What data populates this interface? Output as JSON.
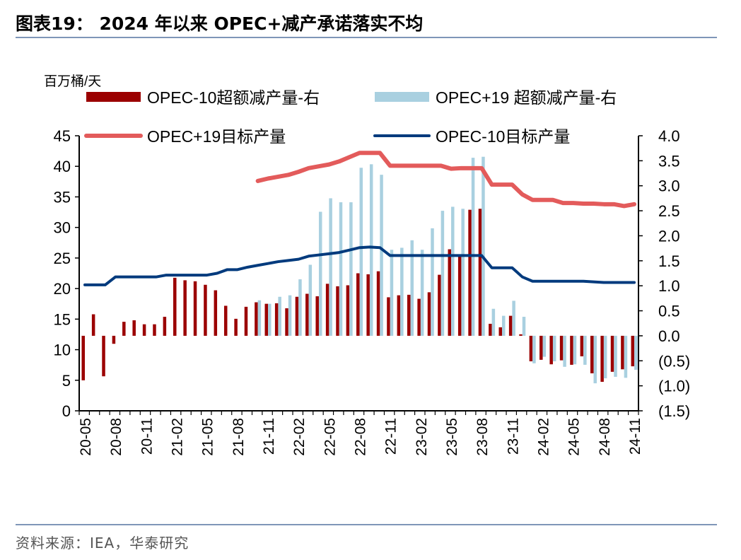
{
  "title": "图表19： 2024 年以来 OPEC+减产承诺落实不均",
  "source": "资料来源：IEA，华泰研究",
  "chart_data": {
    "type": "bar+line",
    "unit_label": "百万桶/天",
    "legend_position": "top",
    "left_axis": {
      "ylim": [
        0,
        45
      ],
      "ticks": [
        "0",
        "5",
        "10",
        "15",
        "20",
        "25",
        "30",
        "35",
        "40",
        "45"
      ]
    },
    "right_axis": {
      "ylim": [
        -1.5,
        4.0
      ],
      "ticks": [
        "(1.5)",
        "(1.0)",
        "(0.5)",
        "0.0",
        "0.5",
        "1.0",
        "1.5",
        "2.0",
        "2.5",
        "3.0",
        "3.5",
        "4.0"
      ]
    },
    "x_tick_labels": [
      "20-05",
      "20-08",
      "20-11",
      "21-02",
      "21-05",
      "21-08",
      "21-11",
      "22-02",
      "22-05",
      "22-08",
      "22-11",
      "23-02",
      "23-05",
      "23-08",
      "23-11",
      "24-02",
      "24-05",
      "24-08",
      "24-11"
    ],
    "x_start": "2020-05",
    "x_end": "2024-11",
    "series": [
      {
        "name": "OPEC-10超额减产量-右",
        "kind": "bar",
        "axis": "right",
        "color": "#9b0000",
        "values": [
          -0.89,
          0.43,
          -0.81,
          -0.16,
          0.28,
          0.31,
          0.23,
          0.23,
          0.38,
          1.16,
          1.11,
          1.09,
          1.02,
          0.91,
          0.6,
          0.34,
          0.58,
          0.67,
          0.64,
          0.65,
          0.55,
          0.78,
          0.84,
          0.79,
          1.04,
          0.99,
          1.01,
          1.25,
          1.23,
          1.29,
          0.77,
          0.81,
          0.82,
          0.74,
          0.87,
          1.22,
          1.73,
          1.63,
          2.52,
          2.54,
          0.24,
          0.17,
          0.4,
          0.03,
          -0.51,
          -0.48,
          -0.57,
          -0.49,
          -0.58,
          -0.41,
          -0.75,
          -0.92,
          -0.72,
          -0.67,
          -0.61
        ]
      },
      {
        "name": "OPEC+19 超额减产量-右",
        "kind": "bar",
        "axis": "right",
        "color": "#a9d0e0",
        "values": [
          null,
          null,
          null,
          null,
          null,
          null,
          null,
          null,
          null,
          null,
          null,
          null,
          null,
          null,
          null,
          null,
          null,
          0.71,
          0.64,
          0.78,
          0.81,
          1.13,
          1.42,
          2.48,
          2.75,
          2.67,
          2.67,
          3.36,
          3.43,
          3.22,
          1.72,
          1.76,
          1.91,
          1.72,
          2.15,
          2.5,
          2.58,
          2.54,
          3.56,
          3.58,
          0.54,
          0.4,
          0.7,
          0.38,
          -0.55,
          -0.42,
          -0.51,
          -0.62,
          -0.57,
          -0.58,
          -0.95,
          -0.85,
          -0.82,
          -0.84,
          -0.68
        ]
      },
      {
        "name": "OPEC+19目标产量",
        "kind": "line",
        "axis": "left",
        "color": "#e35b5b",
        "values": [
          null,
          null,
          null,
          null,
          null,
          null,
          null,
          null,
          null,
          null,
          null,
          null,
          null,
          null,
          null,
          null,
          null,
          37.6,
          38.0,
          38.3,
          38.6,
          39.1,
          39.7,
          40.0,
          40.3,
          40.8,
          41.5,
          42.2,
          42.2,
          42.2,
          40.1,
          40.1,
          40.1,
          40.1,
          40.1,
          40.1,
          39.6,
          39.7,
          39.7,
          39.7,
          37.0,
          37.0,
          37.0,
          35.4,
          34.5,
          34.5,
          34.5,
          34.0,
          34.0,
          33.9,
          33.9,
          33.8,
          33.8,
          33.5,
          33.8
        ]
      },
      {
        "name": "OPEC-10目标产量",
        "kind": "line",
        "axis": "left",
        "color": "#003a7d",
        "values": [
          20.6,
          20.6,
          20.6,
          21.9,
          21.9,
          21.9,
          21.9,
          21.9,
          22.2,
          22.2,
          22.2,
          22.2,
          22.2,
          22.5,
          23.1,
          23.1,
          23.5,
          23.8,
          24.1,
          24.4,
          24.6,
          24.8,
          25.3,
          25.5,
          25.7,
          25.9,
          26.3,
          26.7,
          26.8,
          26.7,
          25.4,
          25.4,
          25.4,
          25.4,
          25.4,
          25.4,
          25.4,
          25.4,
          25.4,
          25.4,
          23.4,
          23.4,
          23.4,
          21.9,
          21.2,
          21.2,
          21.2,
          21.2,
          21.2,
          21.2,
          21.1,
          21.0,
          21.0,
          21.0,
          21.0
        ]
      }
    ]
  }
}
